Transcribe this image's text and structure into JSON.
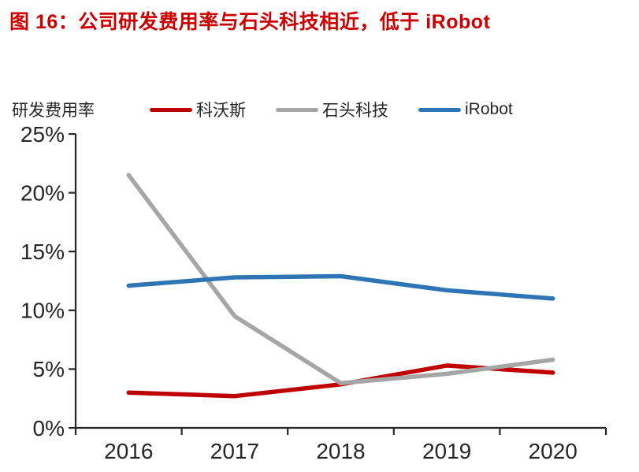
{
  "header": {
    "title": "图 16：公司研发费用率与石头科技相近，低于 iRobot"
  },
  "colors": {
    "title_red": "#cc0000",
    "axis": "#262626",
    "series_red": "#c00000",
    "series_gray": "#a6a6a6",
    "series_blue": "#2e75b6"
  },
  "chart_data": {
    "type": "line",
    "title": "图 16：公司研发费用率与石头科技相近，低于 iRobot",
    "ylabel": "研发费用率",
    "xlabel": "",
    "categories": [
      "2016",
      "2017",
      "2018",
      "2019",
      "2020"
    ],
    "series": [
      {
        "name": "科沃斯",
        "color": "#c00000",
        "values": [
          3.0,
          2.7,
          3.7,
          5.3,
          4.7
        ]
      },
      {
        "name": "石头科技",
        "color": "#a6a6a6",
        "values": [
          21.5,
          9.5,
          3.8,
          4.6,
          5.8
        ]
      },
      {
        "name": "iRobot",
        "color": "#2e75b6",
        "values": [
          12.1,
          12.8,
          12.9,
          11.7,
          11.0
        ]
      }
    ],
    "ylim": [
      0,
      25
    ],
    "ytick_step": 5,
    "ytick_labels": [
      "0%",
      "5%",
      "10%",
      "15%",
      "20%",
      "25%"
    ],
    "grid": false,
    "legend_position": "top"
  }
}
